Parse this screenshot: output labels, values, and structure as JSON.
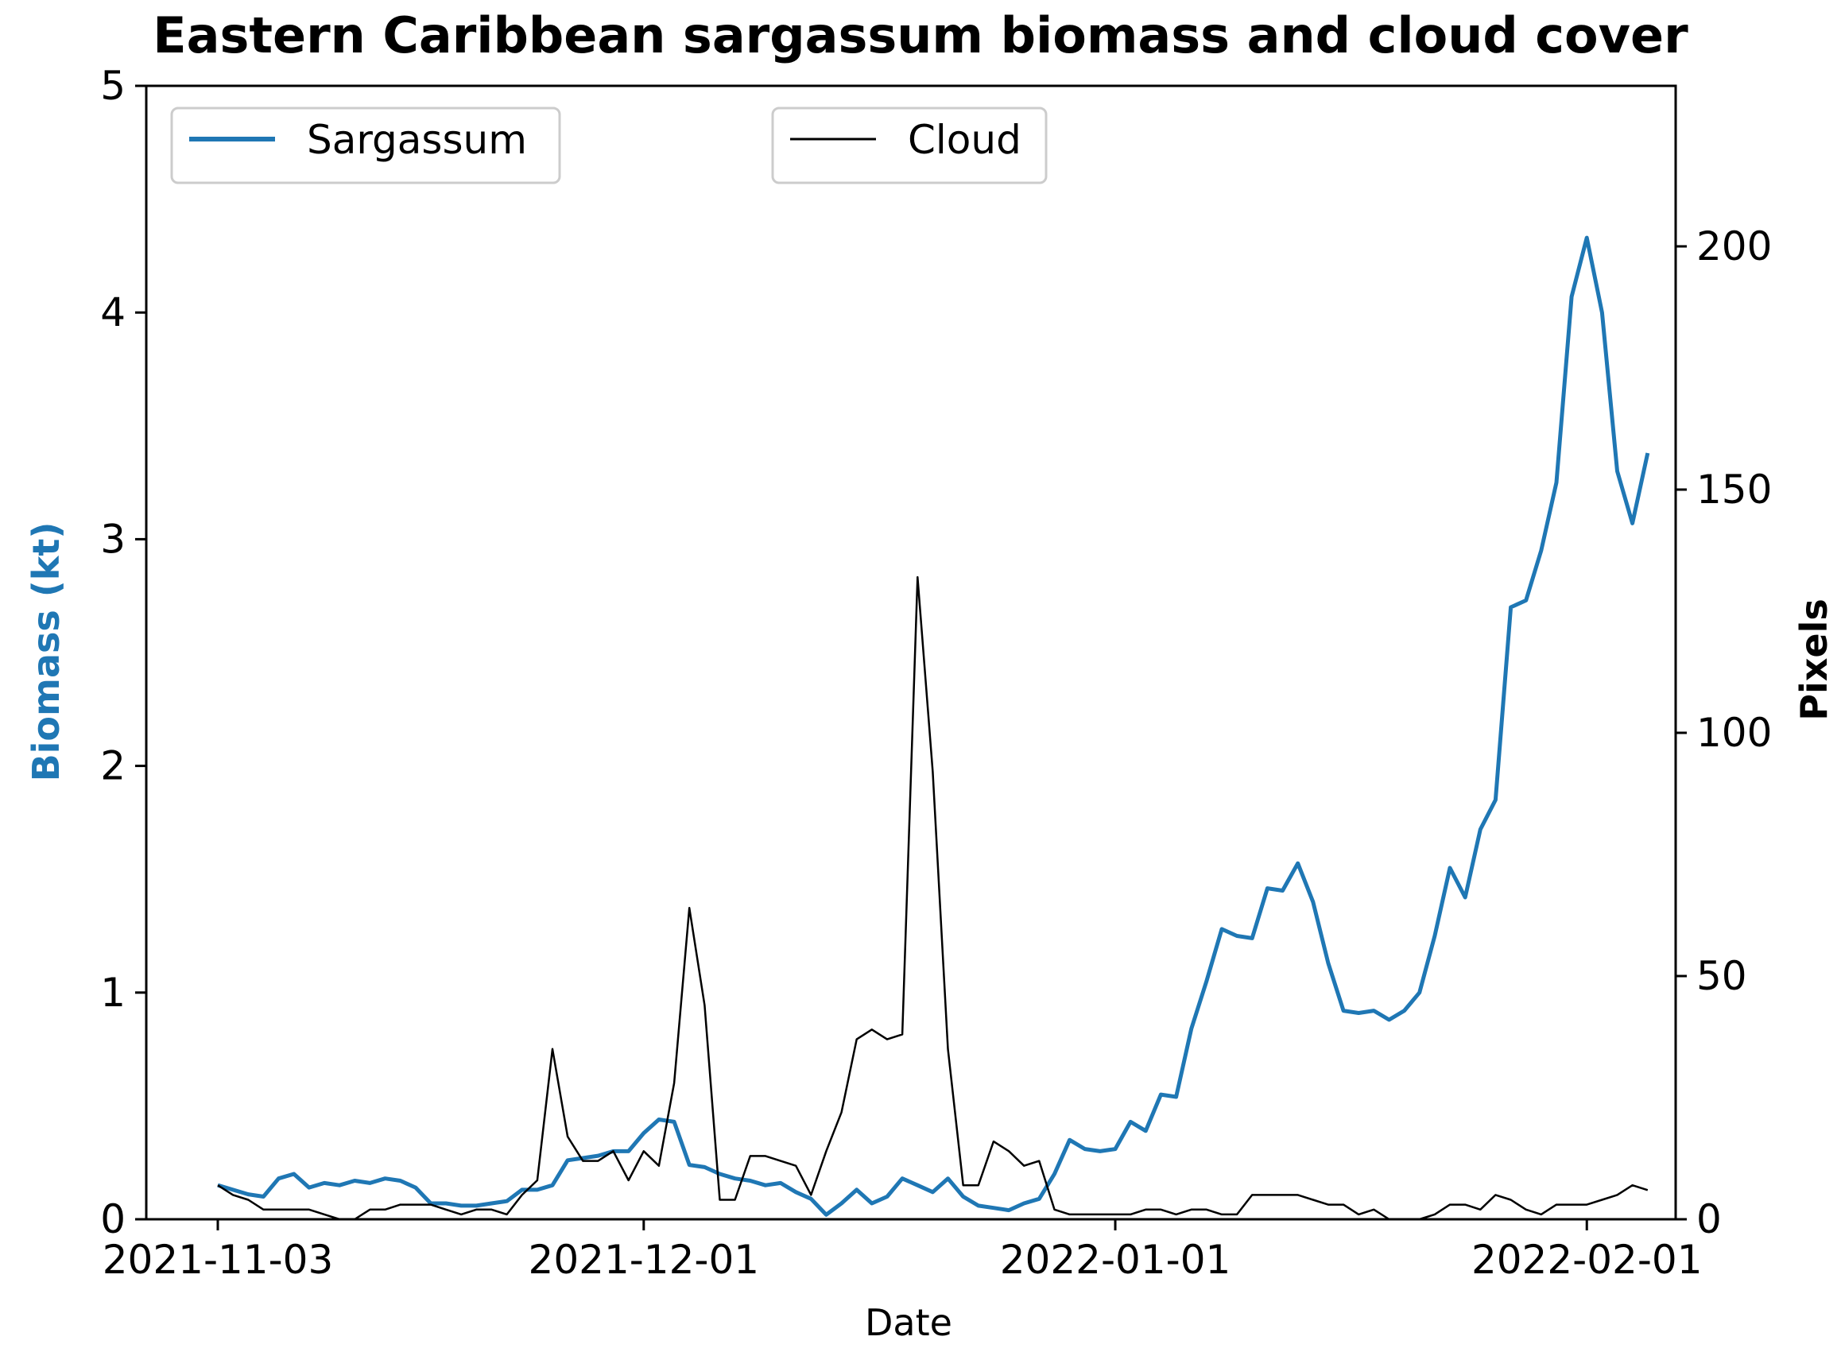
{
  "chart_data": {
    "type": "line",
    "title": "Eastern Caribbean sargassum biomass and cloud cover",
    "xlabel": "Date",
    "ylabel_left": "Biomass (kt)",
    "ylabel_right": "Pixels",
    "x_ticks": [
      "2021-11-03",
      "2021-12-01",
      "2022-01-01",
      "2022-02-01"
    ],
    "ylim_left": [
      0,
      5
    ],
    "yticks_left": [
      "0",
      "1",
      "2",
      "3",
      "4",
      "5"
    ],
    "ylim_right": [
      0,
      233
    ],
    "yticks_right": [
      "0",
      "50",
      "100",
      "150",
      "200"
    ],
    "grid": false,
    "legend": [
      {
        "name": "Sargassum",
        "placement": "top-left"
      },
      {
        "name": "Cloud",
        "placement": "top-center"
      }
    ],
    "colors": {
      "sargassum": "#1f77b4",
      "cloud": "#000000"
    },
    "series": [
      {
        "name": "Sargassum",
        "axis": "left",
        "points": [
          [
            "2021-11-03",
            0.15
          ],
          [
            "2021-11-04",
            0.13
          ],
          [
            "2021-11-05",
            0.11
          ],
          [
            "2021-11-06",
            0.1
          ],
          [
            "2021-11-07",
            0.18
          ],
          [
            "2021-11-08",
            0.2
          ],
          [
            "2021-11-09",
            0.14
          ],
          [
            "2021-11-10",
            0.16
          ],
          [
            "2021-11-11",
            0.15
          ],
          [
            "2021-11-12",
            0.17
          ],
          [
            "2021-11-13",
            0.16
          ],
          [
            "2021-11-14",
            0.18
          ],
          [
            "2021-11-15",
            0.17
          ],
          [
            "2021-11-16",
            0.14
          ],
          [
            "2021-11-17",
            0.07
          ],
          [
            "2021-11-18",
            0.07
          ],
          [
            "2021-11-19",
            0.06
          ],
          [
            "2021-11-20",
            0.06
          ],
          [
            "2021-11-21",
            0.07
          ],
          [
            "2021-11-22",
            0.08
          ],
          [
            "2021-11-23",
            0.13
          ],
          [
            "2021-11-24",
            0.13
          ],
          [
            "2021-11-25",
            0.15
          ],
          [
            "2021-11-26",
            0.26
          ],
          [
            "2021-11-27",
            0.27
          ],
          [
            "2021-11-28",
            0.28
          ],
          [
            "2021-11-29",
            0.3
          ],
          [
            "2021-11-30",
            0.3
          ],
          [
            "2021-12-01",
            0.38
          ],
          [
            "2021-12-02",
            0.44
          ],
          [
            "2021-12-03",
            0.43
          ],
          [
            "2021-12-04",
            0.24
          ],
          [
            "2021-12-05",
            0.23
          ],
          [
            "2021-12-06",
            0.2
          ],
          [
            "2021-12-07",
            0.18
          ],
          [
            "2021-12-08",
            0.17
          ],
          [
            "2021-12-09",
            0.15
          ],
          [
            "2021-12-10",
            0.16
          ],
          [
            "2021-12-11",
            0.12
          ],
          [
            "2021-12-12",
            0.09
          ],
          [
            "2021-12-13",
            0.02
          ],
          [
            "2021-12-14",
            0.07
          ],
          [
            "2021-12-15",
            0.13
          ],
          [
            "2021-12-16",
            0.07
          ],
          [
            "2021-12-17",
            0.1
          ],
          [
            "2021-12-18",
            0.18
          ],
          [
            "2021-12-19",
            0.15
          ],
          [
            "2021-12-20",
            0.12
          ],
          [
            "2021-12-21",
            0.18
          ],
          [
            "2021-12-22",
            0.1
          ],
          [
            "2021-12-23",
            0.06
          ],
          [
            "2021-12-24",
            0.05
          ],
          [
            "2021-12-25",
            0.04
          ],
          [
            "2021-12-26",
            0.07
          ],
          [
            "2021-12-27",
            0.09
          ],
          [
            "2021-12-28",
            0.2
          ],
          [
            "2021-12-29",
            0.35
          ],
          [
            "2021-12-30",
            0.31
          ],
          [
            "2021-12-31",
            0.3
          ],
          [
            "2022-01-01",
            0.31
          ],
          [
            "2022-01-02",
            0.43
          ],
          [
            "2022-01-03",
            0.39
          ],
          [
            "2022-01-04",
            0.55
          ],
          [
            "2022-01-05",
            0.54
          ],
          [
            "2022-01-06",
            0.84
          ],
          [
            "2022-01-07",
            1.05
          ],
          [
            "2022-01-08",
            1.28
          ],
          [
            "2022-01-09",
            1.25
          ],
          [
            "2022-01-10",
            1.24
          ],
          [
            "2022-01-11",
            1.46
          ],
          [
            "2022-01-12",
            1.45
          ],
          [
            "2022-01-13",
            1.57
          ],
          [
            "2022-01-14",
            1.4
          ],
          [
            "2022-01-15",
            1.13
          ],
          [
            "2022-01-16",
            0.92
          ],
          [
            "2022-01-17",
            0.91
          ],
          [
            "2022-01-18",
            0.92
          ],
          [
            "2022-01-19",
            0.88
          ],
          [
            "2022-01-20",
            0.92
          ],
          [
            "2022-01-21",
            1.0
          ],
          [
            "2022-01-22",
            1.25
          ],
          [
            "2022-01-23",
            1.55
          ],
          [
            "2022-01-24",
            1.42
          ],
          [
            "2022-01-25",
            1.72
          ],
          [
            "2022-01-26",
            1.85
          ],
          [
            "2022-01-27",
            2.7
          ],
          [
            "2022-01-28",
            2.73
          ],
          [
            "2022-01-29",
            2.95
          ],
          [
            "2022-01-30",
            3.25
          ],
          [
            "2022-01-31",
            4.07
          ],
          [
            "2022-02-01",
            4.33
          ],
          [
            "2022-02-02",
            4.0
          ],
          [
            "2022-02-03",
            3.3
          ],
          [
            "2022-02-04",
            3.07
          ],
          [
            "2022-02-05",
            3.38
          ]
        ]
      },
      {
        "name": "Cloud",
        "axis": "right",
        "points": [
          [
            "2021-11-03",
            7
          ],
          [
            "2021-11-04",
            5
          ],
          [
            "2021-11-05",
            4
          ],
          [
            "2021-11-06",
            2
          ],
          [
            "2021-11-07",
            2
          ],
          [
            "2021-11-08",
            2
          ],
          [
            "2021-11-09",
            2
          ],
          [
            "2021-11-10",
            1
          ],
          [
            "2021-11-11",
            0
          ],
          [
            "2021-11-12",
            0
          ],
          [
            "2021-11-13",
            2
          ],
          [
            "2021-11-14",
            2
          ],
          [
            "2021-11-15",
            3
          ],
          [
            "2021-11-16",
            3
          ],
          [
            "2021-11-17",
            3
          ],
          [
            "2021-11-18",
            2
          ],
          [
            "2021-11-19",
            1
          ],
          [
            "2021-11-20",
            2
          ],
          [
            "2021-11-21",
            2
          ],
          [
            "2021-11-22",
            1
          ],
          [
            "2021-11-23",
            5
          ],
          [
            "2021-11-24",
            8
          ],
          [
            "2021-11-25",
            35
          ],
          [
            "2021-11-26",
            17
          ],
          [
            "2021-11-27",
            12
          ],
          [
            "2021-11-28",
            12
          ],
          [
            "2021-11-29",
            14
          ],
          [
            "2021-11-30",
            8
          ],
          [
            "2021-12-01",
            14
          ],
          [
            "2021-12-02",
            11
          ],
          [
            "2021-12-03",
            28
          ],
          [
            "2021-12-04",
            64
          ],
          [
            "2021-12-05",
            44
          ],
          [
            "2021-12-06",
            4
          ],
          [
            "2021-12-07",
            4
          ],
          [
            "2021-12-08",
            13
          ],
          [
            "2021-12-09",
            13
          ],
          [
            "2021-12-10",
            12
          ],
          [
            "2021-12-11",
            11
          ],
          [
            "2021-12-12",
            5
          ],
          [
            "2021-12-13",
            14
          ],
          [
            "2021-12-14",
            22
          ],
          [
            "2021-12-15",
            37
          ],
          [
            "2021-12-16",
            39
          ],
          [
            "2021-12-17",
            37
          ],
          [
            "2021-12-18",
            38
          ],
          [
            "2021-12-19",
            132
          ],
          [
            "2021-12-20",
            92
          ],
          [
            "2021-12-21",
            35
          ],
          [
            "2021-12-22",
            7
          ],
          [
            "2021-12-23",
            7
          ],
          [
            "2021-12-24",
            16
          ],
          [
            "2021-12-25",
            14
          ],
          [
            "2021-12-26",
            11
          ],
          [
            "2021-12-27",
            12
          ],
          [
            "2021-12-28",
            2
          ],
          [
            "2021-12-29",
            1
          ],
          [
            "2021-12-30",
            1
          ],
          [
            "2021-12-31",
            1
          ],
          [
            "2022-01-01",
            1
          ],
          [
            "2022-01-02",
            1
          ],
          [
            "2022-01-03",
            2
          ],
          [
            "2022-01-04",
            2
          ],
          [
            "2022-01-05",
            1
          ],
          [
            "2022-01-06",
            2
          ],
          [
            "2022-01-07",
            2
          ],
          [
            "2022-01-08",
            1
          ],
          [
            "2022-01-09",
            1
          ],
          [
            "2022-01-10",
            5
          ],
          [
            "2022-01-11",
            5
          ],
          [
            "2022-01-12",
            5
          ],
          [
            "2022-01-13",
            5
          ],
          [
            "2022-01-14",
            4
          ],
          [
            "2022-01-15",
            3
          ],
          [
            "2022-01-16",
            3
          ],
          [
            "2022-01-17",
            1
          ],
          [
            "2022-01-18",
            2
          ],
          [
            "2022-01-19",
            0
          ],
          [
            "2022-01-20",
            0
          ],
          [
            "2022-01-21",
            0
          ],
          [
            "2022-01-22",
            1
          ],
          [
            "2022-01-23",
            3
          ],
          [
            "2022-01-24",
            3
          ],
          [
            "2022-01-25",
            2
          ],
          [
            "2022-01-26",
            5
          ],
          [
            "2022-01-27",
            4
          ],
          [
            "2022-01-28",
            2
          ],
          [
            "2022-01-29",
            1
          ],
          [
            "2022-01-30",
            3
          ],
          [
            "2022-01-31",
            3
          ],
          [
            "2022-02-01",
            3
          ],
          [
            "2022-02-02",
            4
          ],
          [
            "2022-02-03",
            5
          ],
          [
            "2022-02-04",
            7
          ],
          [
            "2022-02-05",
            6
          ]
        ]
      }
    ]
  }
}
